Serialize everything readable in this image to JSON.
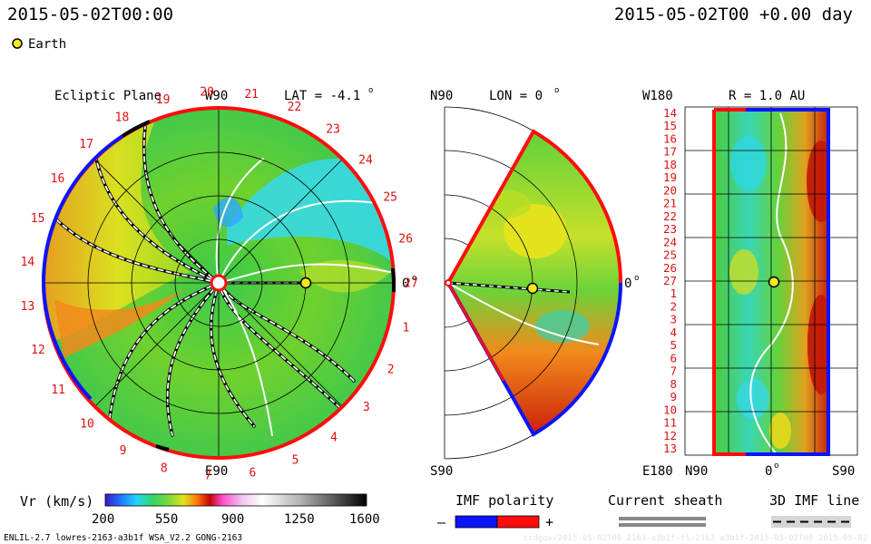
{
  "header": {
    "timestamp_left": "2015-05-02T00:00",
    "timestamp_right": "2015-05-02T00 +0.00 day",
    "legend_earth": "Earth"
  },
  "panels": {
    "ecliptic": {
      "title": "Ecliptic Plane",
      "top_label": "W90",
      "bottom_label": "E90",
      "right_label": "0",
      "lat_label": "LAT = -4.1",
      "degree_mark": "o",
      "sector_numbers": [
        "20",
        "21",
        "22",
        "23",
        "24",
        "25",
        "26",
        "27",
        "1",
        "2",
        "3",
        "4",
        "5",
        "6",
        "7",
        "8",
        "9",
        "10",
        "11",
        "12",
        "13",
        "14",
        "15",
        "16",
        "17",
        "18",
        "19"
      ]
    },
    "meridional": {
      "top_label": "N90",
      "lon_label": "LON = 0",
      "bottom_label": "S90",
      "right_label": "0",
      "degree_mark": "o"
    },
    "radial": {
      "title": "R = 1.0 AU",
      "top_left_label": "W180",
      "bottom_left_label": "E180",
      "x_ticks": [
        "N90",
        "0",
        "S90"
      ],
      "degree_mark": "o",
      "row_numbers": [
        "14",
        "15",
        "16",
        "17",
        "18",
        "19",
        "20",
        "21",
        "22",
        "23",
        "24",
        "25",
        "26",
        "27",
        "1",
        "2",
        "3",
        "4",
        "5",
        "6",
        "7",
        "8",
        "9",
        "10",
        "11",
        "12",
        "13"
      ]
    }
  },
  "colorbar": {
    "label": "Vr (km/s)",
    "ticks": [
      "200",
      "550",
      "900",
      "1250",
      "1600"
    ],
    "range": [
      200,
      1600
    ]
  },
  "imf": {
    "polarity_label": "IMF polarity",
    "minus": "–",
    "plus": "+",
    "current_sheath_label": "Current sheath",
    "imf_line_label": "3D IMF line",
    "negative_color": "#0a14ff",
    "positive_color": "#ff0d0d"
  },
  "footer": {
    "left": "ENLIL-2.7 lowres-2163-a3b1f WSA_V2.2 GONG-2163",
    "right": "tidgov/2015-05-02T00 2163-a3b1f-fl-2163 a3b1f-2015-05-02T00 2015-05-02"
  },
  "chart_data": [
    {
      "type": "heatmap",
      "title": "Ecliptic Plane",
      "quantity": "Vr (km/s)",
      "lat_deg": -4.1,
      "spiral_arms_fieldlines": 8,
      "earth_position_au": 1.0,
      "earth_longitude_deg": 0,
      "speed_range": [
        200,
        1600
      ]
    },
    {
      "type": "heatmap",
      "title": "LON = 0",
      "latitude_range_deg": [
        -90,
        90
      ],
      "earth_longitude_deg": 0
    },
    {
      "type": "heatmap",
      "title": "R = 1.0 AU",
      "x_axis": [
        "N90",
        "0",
        "S90"
      ],
      "y_axis_range": [
        "W180",
        "E180"
      ]
    }
  ]
}
